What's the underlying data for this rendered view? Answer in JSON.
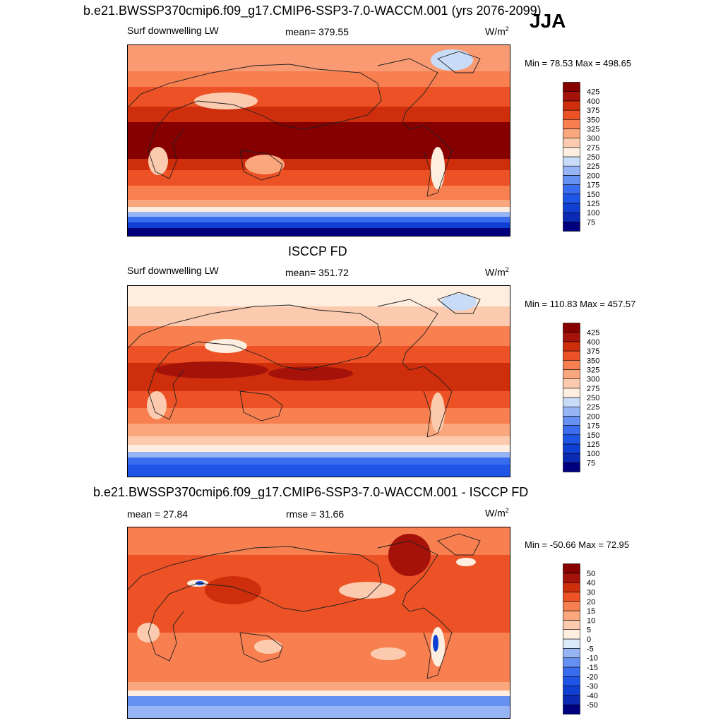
{
  "season": "JJA",
  "panels": [
    {
      "title": "b.e21.BWSSP370cmip6.f09_g17.CMIP6-SSP3-7.0-WACCM.001 (yrs 2076-2099)",
      "left_label": "Surf downwelling LW",
      "center_label": "mean= 379.55",
      "units_base": "W/m",
      "units_exp": "2",
      "minmax": "Min =  78.53 Max = 498.65"
    },
    {
      "title": "ISCCP FD",
      "left_label": "Surf downwelling LW",
      "center_label": "mean= 351.72",
      "units_base": "W/m",
      "units_exp": "2",
      "minmax": "Min = 110.83 Max = 457.57"
    },
    {
      "title": "b.e21.BWSSP370cmip6.f09_g17.CMIP6-SSP3-7.0-WACCM.001 - ISCCP FD",
      "left_label": "mean =  27.84",
      "center_label": "rmse =  31.66",
      "units_base": "W/m",
      "units_exp": "2",
      "minmax": "Min = -50.66 Max =  72.95"
    }
  ],
  "chart_data": [
    {
      "type": "heatmap",
      "title": "b.e21.BWSSP370cmip6.f09_g17.CMIP6-SSP3-7.0-WACCM.001 (yrs 2076-2099)",
      "variable": "Surf downwelling LW",
      "mean": 379.55,
      "units": "W/m2",
      "min": 78.53,
      "max": 498.65,
      "colorbar_levels": [
        75,
        100,
        125,
        150,
        175,
        200,
        225,
        250,
        275,
        300,
        325,
        350,
        375,
        400,
        425
      ],
      "colorbar_labels": [
        "75",
        "100",
        "125",
        "150",
        "175",
        "200",
        "225",
        "250",
        "275",
        "300",
        "325",
        "350",
        "375",
        "400",
        "425"
      ],
      "colors": [
        "#00007f",
        "#0a2ab3",
        "#0f3fd2",
        "#1e55e6",
        "#3a6cf0",
        "#6690f2",
        "#97b5f5",
        "#c8dcf8",
        "#fdeedf",
        "#fccbaf",
        "#fba77e",
        "#f77f50",
        "#ec5225",
        "#cf2e0c",
        "#a5120a",
        "#860000"
      ]
    },
    {
      "type": "heatmap",
      "title": "ISCCP FD",
      "variable": "Surf downwelling LW",
      "mean": 351.72,
      "units": "W/m2",
      "min": 110.83,
      "max": 457.57,
      "colorbar_levels": [
        75,
        100,
        125,
        150,
        175,
        200,
        225,
        250,
        275,
        300,
        325,
        350,
        375,
        400,
        425
      ],
      "colorbar_labels": [
        "75",
        "100",
        "125",
        "150",
        "175",
        "200",
        "225",
        "250",
        "275",
        "300",
        "325",
        "350",
        "375",
        "400",
        "425"
      ],
      "colors": [
        "#00007f",
        "#0a2ab3",
        "#0f3fd2",
        "#1e55e6",
        "#3a6cf0",
        "#6690f2",
        "#97b5f5",
        "#c8dcf8",
        "#fdeedf",
        "#fccbaf",
        "#fba77e",
        "#f77f50",
        "#ec5225",
        "#cf2e0c",
        "#a5120a",
        "#860000"
      ]
    },
    {
      "type": "heatmap",
      "title": "b.e21.BWSSP370cmip6.f09_g17.CMIP6-SSP3-7.0-WACCM.001 - ISCCP FD",
      "mean": 27.84,
      "rmse": 31.66,
      "units": "W/m2",
      "min": -50.66,
      "max": 72.95,
      "colorbar_levels": [
        -50,
        -40,
        -30,
        -20,
        -15,
        -10,
        -5,
        0,
        5,
        10,
        15,
        20,
        30,
        40,
        50
      ],
      "colorbar_labels": [
        "-50",
        "-40",
        "-30",
        "-20",
        "-15",
        "-10",
        "-5",
        "0",
        "5",
        "10",
        "15",
        "20",
        "30",
        "40",
        "50"
      ],
      "colors": [
        "#00007f",
        "#0a2ab3",
        "#0f3fd2",
        "#1e55e6",
        "#3a6cf0",
        "#6690f2",
        "#97b5f5",
        "#ddeafa",
        "#fdeedf",
        "#fccbaf",
        "#fba77e",
        "#f77f50",
        "#ec5225",
        "#cf2e0c",
        "#a5120a",
        "#860000"
      ]
    }
  ]
}
